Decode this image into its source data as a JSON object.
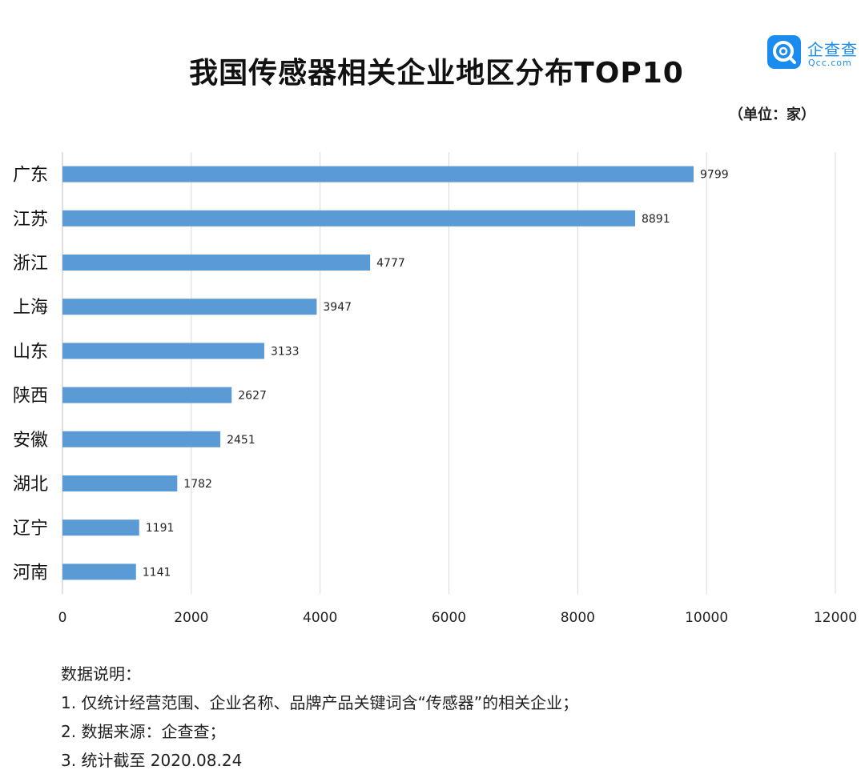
{
  "title": "我国传感器相关企业地区分布TOP10",
  "unit_label": "（单位：家）",
  "logo": {
    "name": "企查查",
    "sub": "Qcc.com",
    "icon": "qcc-logo-icon",
    "color": "#1a8cf0"
  },
  "notes": {
    "heading": "数据说明：",
    "items": [
      "1. 仅统计经营范围、企业名称、品牌产品关键词含“传感器”的相关企业；",
      "2. 数据来源：企查查；",
      "3. 统计截至 2020.08.24"
    ]
  },
  "chart_data": {
    "type": "bar",
    "orientation": "horizontal",
    "title": "我国传感器相关企业地区分布TOP10",
    "xlabel": "",
    "ylabel": "",
    "categories": [
      "广东",
      "江苏",
      "浙江",
      "上海",
      "山东",
      "陕西",
      "安徽",
      "湖北",
      "辽宁",
      "河南"
    ],
    "values": [
      9799,
      8891,
      4777,
      3947,
      3133,
      2627,
      2451,
      1782,
      1191,
      1141
    ],
    "xlim": [
      0,
      12000
    ],
    "xticks": [
      0,
      2000,
      4000,
      6000,
      8000,
      10000,
      12000
    ],
    "grid": true,
    "legend": "none",
    "bar_color": "#5b9bd5"
  }
}
